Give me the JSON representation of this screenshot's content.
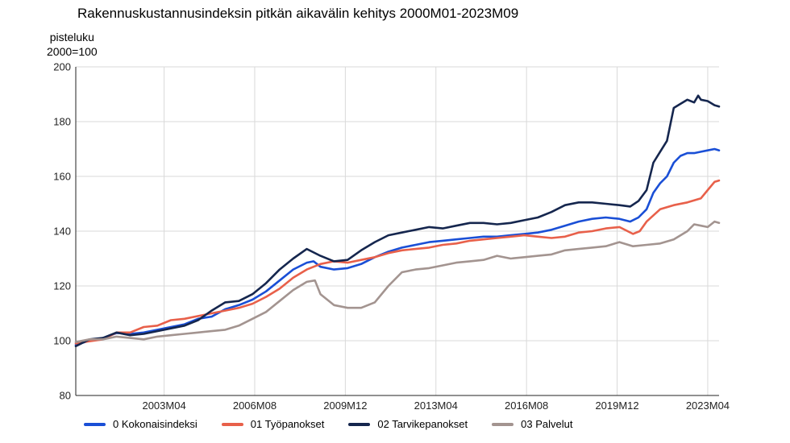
{
  "chart_data": {
    "type": "line",
    "title": "Rakennuskustannusindeksin pitkän aikavälin kehitys 2000M01-2023M09",
    "ylabel": "pisteluku",
    "ylabel_sub": "2000=100",
    "ylim": [
      80,
      200
    ],
    "yticks": [
      80,
      100,
      120,
      140,
      160,
      180,
      200
    ],
    "xlim": [
      2000.0,
      2023.667
    ],
    "xticks": [
      {
        "label": "2003M04",
        "x": 2003.25
      },
      {
        "label": "2006M08",
        "x": 2006.583
      },
      {
        "label": "2009M12",
        "x": 2009.917
      },
      {
        "label": "2013M04",
        "x": 2013.25
      },
      {
        "label": "2016M08",
        "x": 2016.583
      },
      {
        "label": "2019M12",
        "x": 2019.917
      },
      {
        "label": "2023M04",
        "x": 2023.25
      }
    ],
    "grid": true,
    "legend_position": "bottom",
    "series": [
      {
        "name": "0 Kokonaisindeksi",
        "color": "#1a4fd6",
        "points": [
          [
            2000.0,
            98.5
          ],
          [
            2000.5,
            100.0
          ],
          [
            2001.0,
            101.0
          ],
          [
            2001.5,
            102.8
          ],
          [
            2002.0,
            102.5
          ],
          [
            2002.5,
            103.0
          ],
          [
            2003.0,
            104.0
          ],
          [
            2003.5,
            105.0
          ],
          [
            2004.0,
            106.0
          ],
          [
            2004.5,
            108.0
          ],
          [
            2005.0,
            108.8
          ],
          [
            2005.5,
            111.5
          ],
          [
            2006.0,
            113.0
          ],
          [
            2006.5,
            115.0
          ],
          [
            2007.0,
            118.0
          ],
          [
            2007.5,
            122.0
          ],
          [
            2008.0,
            126.0
          ],
          [
            2008.5,
            128.5
          ],
          [
            2008.75,
            129.0
          ],
          [
            2009.0,
            127.0
          ],
          [
            2009.5,
            126.0
          ],
          [
            2010.0,
            126.5
          ],
          [
            2010.5,
            128.0
          ],
          [
            2011.0,
            130.5
          ],
          [
            2011.5,
            132.5
          ],
          [
            2012.0,
            134.0
          ],
          [
            2012.5,
            135.0
          ],
          [
            2013.0,
            136.0
          ],
          [
            2013.5,
            136.5
          ],
          [
            2014.0,
            137.0
          ],
          [
            2014.5,
            137.5
          ],
          [
            2015.0,
            138.0
          ],
          [
            2015.5,
            138.0
          ],
          [
            2016.0,
            138.5
          ],
          [
            2016.5,
            139.0
          ],
          [
            2017.0,
            139.5
          ],
          [
            2017.5,
            140.5
          ],
          [
            2018.0,
            142.0
          ],
          [
            2018.5,
            143.5
          ],
          [
            2019.0,
            144.5
          ],
          [
            2019.5,
            145.0
          ],
          [
            2020.0,
            144.5
          ],
          [
            2020.4,
            143.5
          ],
          [
            2020.7,
            145.0
          ],
          [
            2021.0,
            148.0
          ],
          [
            2021.25,
            154.0
          ],
          [
            2021.5,
            157.5
          ],
          [
            2021.75,
            160.0
          ],
          [
            2022.0,
            165.0
          ],
          [
            2022.25,
            167.5
          ],
          [
            2022.5,
            168.5
          ],
          [
            2022.75,
            168.5
          ],
          [
            2023.0,
            169.0
          ],
          [
            2023.25,
            169.5
          ],
          [
            2023.5,
            170.0
          ],
          [
            2023.667,
            169.5
          ]
        ]
      },
      {
        "name": "01 Työpanokset",
        "color": "#e8604a",
        "points": [
          [
            2000.0,
            99.0
          ],
          [
            2000.5,
            99.8
          ],
          [
            2001.0,
            100.5
          ],
          [
            2001.5,
            103.0
          ],
          [
            2002.0,
            103.0
          ],
          [
            2002.5,
            105.0
          ],
          [
            2003.0,
            105.5
          ],
          [
            2003.5,
            107.5
          ],
          [
            2004.0,
            108.0
          ],
          [
            2004.5,
            109.0
          ],
          [
            2005.0,
            110.0
          ],
          [
            2005.5,
            111.0
          ],
          [
            2006.0,
            112.0
          ],
          [
            2006.5,
            113.5
          ],
          [
            2007.0,
            116.0
          ],
          [
            2007.5,
            119.0
          ],
          [
            2008.0,
            123.0
          ],
          [
            2008.5,
            126.0
          ],
          [
            2009.0,
            128.0
          ],
          [
            2009.5,
            129.0
          ],
          [
            2010.0,
            128.5
          ],
          [
            2010.5,
            129.5
          ],
          [
            2011.0,
            130.5
          ],
          [
            2011.5,
            132.0
          ],
          [
            2012.0,
            133.0
          ],
          [
            2012.5,
            133.5
          ],
          [
            2013.0,
            134.0
          ],
          [
            2013.5,
            135.0
          ],
          [
            2014.0,
            135.5
          ],
          [
            2014.5,
            136.5
          ],
          [
            2015.0,
            137.0
          ],
          [
            2015.5,
            137.5
          ],
          [
            2016.0,
            138.0
          ],
          [
            2016.5,
            138.5
          ],
          [
            2017.0,
            138.0
          ],
          [
            2017.5,
            137.5
          ],
          [
            2018.0,
            138.0
          ],
          [
            2018.5,
            139.5
          ],
          [
            2019.0,
            140.0
          ],
          [
            2019.5,
            141.0
          ],
          [
            2020.0,
            141.5
          ],
          [
            2020.5,
            139.0
          ],
          [
            2020.75,
            140.0
          ],
          [
            2021.0,
            143.5
          ],
          [
            2021.5,
            148.0
          ],
          [
            2022.0,
            149.5
          ],
          [
            2022.5,
            150.5
          ],
          [
            2023.0,
            152.0
          ],
          [
            2023.25,
            155.0
          ],
          [
            2023.5,
            158.0
          ],
          [
            2023.667,
            158.5
          ]
        ]
      },
      {
        "name": "02 Tarvikepanokset",
        "color": "#15264e",
        "points": [
          [
            2000.0,
            98.0
          ],
          [
            2000.5,
            100.5
          ],
          [
            2001.0,
            101.0
          ],
          [
            2001.5,
            103.0
          ],
          [
            2002.0,
            102.0
          ],
          [
            2002.5,
            102.5
          ],
          [
            2003.0,
            103.5
          ],
          [
            2003.5,
            104.5
          ],
          [
            2004.0,
            105.5
          ],
          [
            2004.5,
            107.5
          ],
          [
            2005.0,
            111.0
          ],
          [
            2005.5,
            114.0
          ],
          [
            2006.0,
            114.5
          ],
          [
            2006.5,
            117.0
          ],
          [
            2007.0,
            121.0
          ],
          [
            2007.5,
            126.0
          ],
          [
            2008.0,
            130.0
          ],
          [
            2008.5,
            133.5
          ],
          [
            2009.0,
            131.0
          ],
          [
            2009.5,
            129.0
          ],
          [
            2010.0,
            129.5
          ],
          [
            2010.5,
            133.0
          ],
          [
            2011.0,
            136.0
          ],
          [
            2011.5,
            138.5
          ],
          [
            2012.0,
            139.5
          ],
          [
            2012.5,
            140.5
          ],
          [
            2013.0,
            141.5
          ],
          [
            2013.5,
            141.0
          ],
          [
            2014.0,
            142.0
          ],
          [
            2014.5,
            143.0
          ],
          [
            2015.0,
            143.0
          ],
          [
            2015.5,
            142.5
          ],
          [
            2016.0,
            143.0
          ],
          [
            2016.5,
            144.0
          ],
          [
            2017.0,
            145.0
          ],
          [
            2017.5,
            147.0
          ],
          [
            2018.0,
            149.5
          ],
          [
            2018.5,
            150.5
          ],
          [
            2019.0,
            150.5
          ],
          [
            2019.5,
            150.0
          ],
          [
            2020.0,
            149.5
          ],
          [
            2020.4,
            149.0
          ],
          [
            2020.7,
            151.0
          ],
          [
            2021.0,
            155.0
          ],
          [
            2021.25,
            165.0
          ],
          [
            2021.5,
            169.0
          ],
          [
            2021.75,
            173.0
          ],
          [
            2022.0,
            185.0
          ],
          [
            2022.25,
            186.5
          ],
          [
            2022.5,
            188.0
          ],
          [
            2022.75,
            187.0
          ],
          [
            2022.9,
            189.5
          ],
          [
            2023.0,
            188.0
          ],
          [
            2023.25,
            187.5
          ],
          [
            2023.5,
            186.0
          ],
          [
            2023.667,
            185.5
          ]
        ]
      },
      {
        "name": "03 Palvelut",
        "color": "#a39490",
        "points": [
          [
            2000.0,
            99.5
          ],
          [
            2000.5,
            100.5
          ],
          [
            2001.0,
            100.5
          ],
          [
            2001.5,
            101.5
          ],
          [
            2002.0,
            101.0
          ],
          [
            2002.5,
            100.5
          ],
          [
            2003.0,
            101.5
          ],
          [
            2003.5,
            102.0
          ],
          [
            2004.0,
            102.5
          ],
          [
            2004.5,
            103.0
          ],
          [
            2005.0,
            103.5
          ],
          [
            2005.5,
            104.0
          ],
          [
            2006.0,
            105.5
          ],
          [
            2006.5,
            108.0
          ],
          [
            2007.0,
            110.5
          ],
          [
            2007.5,
            114.5
          ],
          [
            2008.0,
            118.5
          ],
          [
            2008.5,
            121.5
          ],
          [
            2008.8,
            122.0
          ],
          [
            2009.0,
            117.0
          ],
          [
            2009.5,
            113.0
          ],
          [
            2010.0,
            112.0
          ],
          [
            2010.5,
            112.0
          ],
          [
            2011.0,
            114.0
          ],
          [
            2011.5,
            120.0
          ],
          [
            2012.0,
            125.0
          ],
          [
            2012.5,
            126.0
          ],
          [
            2013.0,
            126.5
          ],
          [
            2013.5,
            127.5
          ],
          [
            2014.0,
            128.5
          ],
          [
            2014.5,
            129.0
          ],
          [
            2015.0,
            129.5
          ],
          [
            2015.5,
            131.0
          ],
          [
            2016.0,
            130.0
          ],
          [
            2016.5,
            130.5
          ],
          [
            2017.0,
            131.0
          ],
          [
            2017.5,
            131.5
          ],
          [
            2018.0,
            133.0
          ],
          [
            2018.5,
            133.5
          ],
          [
            2019.0,
            134.0
          ],
          [
            2019.5,
            134.5
          ],
          [
            2020.0,
            136.0
          ],
          [
            2020.5,
            134.5
          ],
          [
            2021.0,
            135.0
          ],
          [
            2021.5,
            135.5
          ],
          [
            2022.0,
            137.0
          ],
          [
            2022.5,
            140.0
          ],
          [
            2022.75,
            142.5
          ],
          [
            2023.0,
            142.0
          ],
          [
            2023.25,
            141.5
          ],
          [
            2023.5,
            143.5
          ],
          [
            2023.667,
            143.0
          ]
        ]
      }
    ]
  }
}
